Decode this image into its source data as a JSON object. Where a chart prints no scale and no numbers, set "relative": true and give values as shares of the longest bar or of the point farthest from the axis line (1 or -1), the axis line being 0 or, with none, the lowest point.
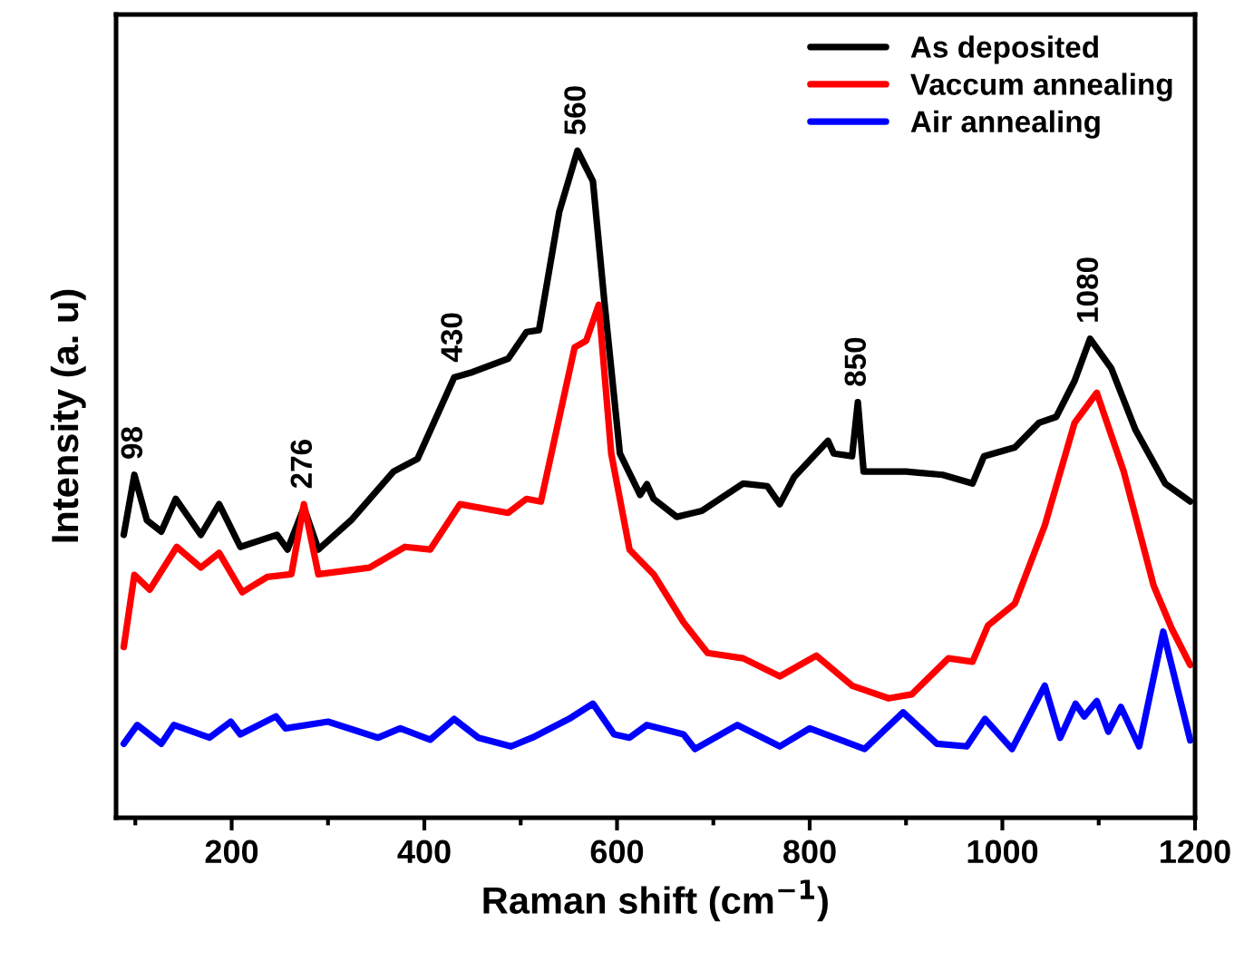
{
  "chart_data": {
    "type": "line",
    "relative": true,
    "xlabel": "Raman shift (cm$^{−1}$)",
    "ylabel": "Intensity (a. u)",
    "xlim": [
      80,
      1200
    ],
    "xticks": [
      200,
      400,
      600,
      800,
      1000,
      1200
    ],
    "legend": "top right",
    "grid": false,
    "marker": "none",
    "line_style": "solid",
    "tick_labels": "x",
    "series": [
      {
        "name": "As deposited",
        "color": "#000000",
        "x": [
          88,
          99,
          112,
          127,
          142,
          168,
          187,
          209,
          230,
          247,
          258,
          275,
          290,
          324,
          368,
          393,
          431,
          450,
          487,
          506,
          519,
          540,
          559,
          575,
          587,
          603,
          624,
          631,
          638,
          662,
          688,
          731,
          756,
          769,
          784,
          819,
          825,
          844,
          850,
          856,
          900,
          938,
          969,
          981,
          1013,
          1038,
          1056,
          1075,
          1091,
          1113,
          1138,
          1169,
          1195
        ],
        "values": [
          0.424,
          0.514,
          0.446,
          0.429,
          0.478,
          0.424,
          0.47,
          0.406,
          0.416,
          0.424,
          0.402,
          0.465,
          0.402,
          0.446,
          0.519,
          0.538,
          0.66,
          0.668,
          0.688,
          0.728,
          0.731,
          0.908,
          1.0,
          0.954,
          0.772,
          0.546,
          0.484,
          0.5,
          0.478,
          0.451,
          0.46,
          0.501,
          0.497,
          0.47,
          0.511,
          0.565,
          0.546,
          0.542,
          0.623,
          0.519,
          0.519,
          0.514,
          0.501,
          0.542,
          0.555,
          0.592,
          0.601,
          0.655,
          0.718,
          0.674,
          0.582,
          0.501,
          0.474
        ]
      },
      {
        "name": "Vaccum annealing",
        "color": "#ff0000",
        "x": [
          88,
          99,
          115,
          143,
          168,
          187,
          211,
          237,
          262,
          275,
          290,
          343,
          380,
          406,
          437,
          487,
          506,
          521,
          556,
          568,
          581,
          594,
          613,
          638,
          669,
          694,
          731,
          769,
          807,
          844,
          882,
          906,
          944,
          969,
          985,
          1013,
          1044,
          1075,
          1098,
          1126,
          1157,
          1176,
          1195
        ],
        "values": [
          0.256,
          0.364,
          0.342,
          0.406,
          0.375,
          0.397,
          0.338,
          0.361,
          0.365,
          0.47,
          0.365,
          0.375,
          0.406,
          0.402,
          0.47,
          0.457,
          0.478,
          0.474,
          0.705,
          0.715,
          0.769,
          0.546,
          0.402,
          0.365,
          0.293,
          0.247,
          0.239,
          0.212,
          0.243,
          0.198,
          0.179,
          0.185,
          0.239,
          0.234,
          0.288,
          0.321,
          0.438,
          0.592,
          0.637,
          0.519,
          0.348,
          0.283,
          0.229
        ]
      },
      {
        "name": "Air annealing",
        "color": "#0000ff",
        "x": [
          88,
          102,
          127,
          140,
          177,
          199,
          209,
          246,
          256,
          300,
          352,
          375,
          406,
          431,
          456,
          490,
          512,
          550,
          575,
          597,
          613,
          631,
          669,
          681,
          725,
          769,
          800,
          857,
          897,
          932,
          963,
          982,
          1010,
          1044,
          1060,
          1076,
          1085,
          1098,
          1110,
          1123,
          1142,
          1167,
          1195
        ],
        "values": [
          0.111,
          0.139,
          0.111,
          0.139,
          0.12,
          0.144,
          0.125,
          0.152,
          0.134,
          0.144,
          0.12,
          0.134,
          0.117,
          0.148,
          0.12,
          0.107,
          0.12,
          0.148,
          0.171,
          0.125,
          0.12,
          0.139,
          0.125,
          0.103,
          0.139,
          0.107,
          0.134,
          0.103,
          0.158,
          0.111,
          0.107,
          0.148,
          0.103,
          0.198,
          0.12,
          0.171,
          0.152,
          0.175,
          0.129,
          0.166,
          0.107,
          0.279,
          0.116
        ]
      }
    ],
    "annotations": [
      {
        "text": "98",
        "x": 99,
        "y": 0.514
      },
      {
        "text": "276",
        "x": 275,
        "y": 0.47
      },
      {
        "text": "430",
        "x": 431,
        "y": 0.66
      },
      {
        "text": "560",
        "x": 559,
        "y": 1.0
      },
      {
        "text": "850",
        "x": 850,
        "y": 0.623
      },
      {
        "text": "1080",
        "x": 1091,
        "y": 0.718
      }
    ]
  }
}
